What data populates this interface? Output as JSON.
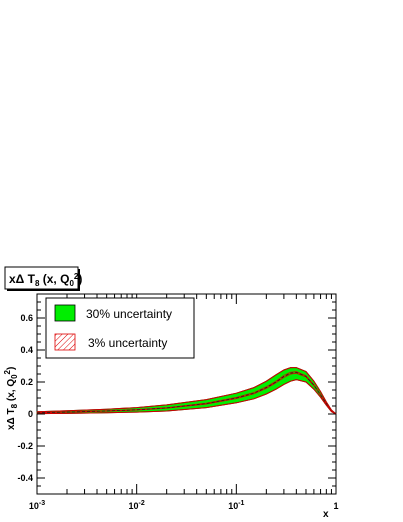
{
  "chart_data": {
    "type": "area",
    "title": "xΔ T8 (x, Q0²)",
    "xlabel": "x",
    "ylabel": "xΔ T8 (x, Q0²)",
    "x_scale": "log",
    "xlim": [
      0.001,
      1
    ],
    "ylim": [
      -0.5,
      0.75
    ],
    "x_ticks": [
      {
        "value": 0.001,
        "base": "10",
        "exp": "-3"
      },
      {
        "value": 0.01,
        "base": "10",
        "exp": "-2"
      },
      {
        "value": 0.1,
        "base": "10",
        "exp": "-1"
      },
      {
        "value": 1,
        "base": "1",
        "exp": ""
      }
    ],
    "y_ticks": [
      {
        "value": -0.4,
        "label": "-0.4"
      },
      {
        "value": -0.2,
        "label": "-0.2"
      },
      {
        "value": 0,
        "label": "0"
      },
      {
        "value": 0.2,
        "label": "0.2"
      },
      {
        "value": 0.4,
        "label": "0.4"
      },
      {
        "value": 0.6,
        "label": "0.6"
      }
    ],
    "x": [
      0.001,
      0.002,
      0.005,
      0.01,
      0.02,
      0.05,
      0.1,
      0.15,
      0.2,
      0.25,
      0.3,
      0.35,
      0.4,
      0.5,
      0.6,
      0.7,
      0.8,
      0.9,
      1.0
    ],
    "central": [
      0.008,
      0.012,
      0.019,
      0.026,
      0.038,
      0.065,
      0.1,
      0.13,
      0.165,
      0.2,
      0.235,
      0.255,
      0.26,
      0.235,
      0.18,
      0.12,
      0.065,
      0.02,
      0.0
    ],
    "series": [
      {
        "name": "30% uncertainty",
        "color": "#00ee00",
        "style": "solid fill",
        "lower": [
          0.002,
          0.004,
          0.008,
          0.012,
          0.019,
          0.04,
          0.07,
          0.095,
          0.125,
          0.155,
          0.185,
          0.205,
          0.215,
          0.2,
          0.155,
          0.105,
          0.055,
          0.015,
          0.0
        ],
        "upper": [
          0.014,
          0.02,
          0.03,
          0.04,
          0.057,
          0.09,
          0.13,
          0.165,
          0.205,
          0.245,
          0.275,
          0.29,
          0.29,
          0.265,
          0.205,
          0.14,
          0.075,
          0.025,
          0.0
        ]
      },
      {
        "name": "3% uncertainty",
        "color": "#dd0000",
        "style": "hatched",
        "lower": [
          0.007,
          0.011,
          0.017,
          0.024,
          0.036,
          0.062,
          0.096,
          0.126,
          0.16,
          0.195,
          0.229,
          0.249,
          0.255,
          0.231,
          0.177,
          0.118,
          0.064,
          0.019,
          0.0
        ],
        "upper": [
          0.009,
          0.013,
          0.021,
          0.028,
          0.04,
          0.068,
          0.104,
          0.134,
          0.17,
          0.205,
          0.241,
          0.261,
          0.265,
          0.239,
          0.183,
          0.122,
          0.066,
          0.021,
          0.0
        ]
      }
    ],
    "legend": {
      "placement": "top-left",
      "items": [
        {
          "label": "30% uncertainty",
          "swatch": "solid-green"
        },
        {
          "label": "3% uncertainty",
          "swatch": "red-hatch"
        }
      ]
    },
    "grid": false
  }
}
